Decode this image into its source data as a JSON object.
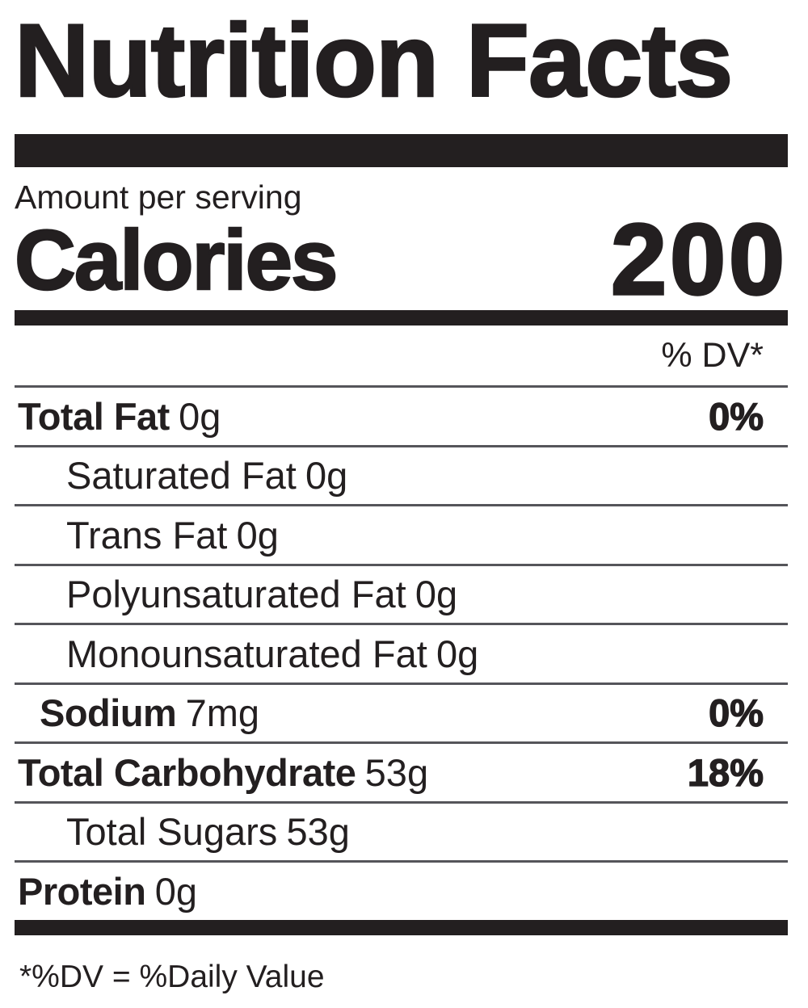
{
  "label": {
    "title": "Nutrition Facts",
    "amount_per_serving": "Amount per serving",
    "calories_label": "Calories",
    "calories_value": "200",
    "dv_header": "% DV*",
    "rows": [
      {
        "name": "Total Fat",
        "amount": "0g",
        "dv": "0%",
        "bold": true,
        "indent": 0
      },
      {
        "name": "Saturated Fat",
        "amount": "0g",
        "dv": "",
        "bold": false,
        "indent": 2
      },
      {
        "name": "Trans Fat",
        "amount": "0g",
        "dv": "",
        "bold": false,
        "indent": 2
      },
      {
        "name": "Polyunsaturated Fat",
        "amount": "0g",
        "dv": "",
        "bold": false,
        "indent": 2
      },
      {
        "name": "Monounsaturated Fat",
        "amount": "0g",
        "dv": "",
        "bold": false,
        "indent": 2
      },
      {
        "name": "Sodium",
        "amount": "7mg",
        "dv": "0%",
        "bold": true,
        "indent": 1
      },
      {
        "name": "Total Carbohydrate",
        "amount": "53g",
        "dv": "18%",
        "bold": true,
        "indent": 0
      },
      {
        "name": "Total Sugars",
        "amount": "53g",
        "dv": "",
        "bold": false,
        "indent": 2
      },
      {
        "name": "Protein",
        "amount": "0g",
        "dv": "",
        "bold": true,
        "indent": 0
      }
    ],
    "footnote": "*%DV = %Daily Value"
  },
  "colors": {
    "ink": "#231f20",
    "hairline": "#55555a",
    "background": "#ffffff"
  }
}
